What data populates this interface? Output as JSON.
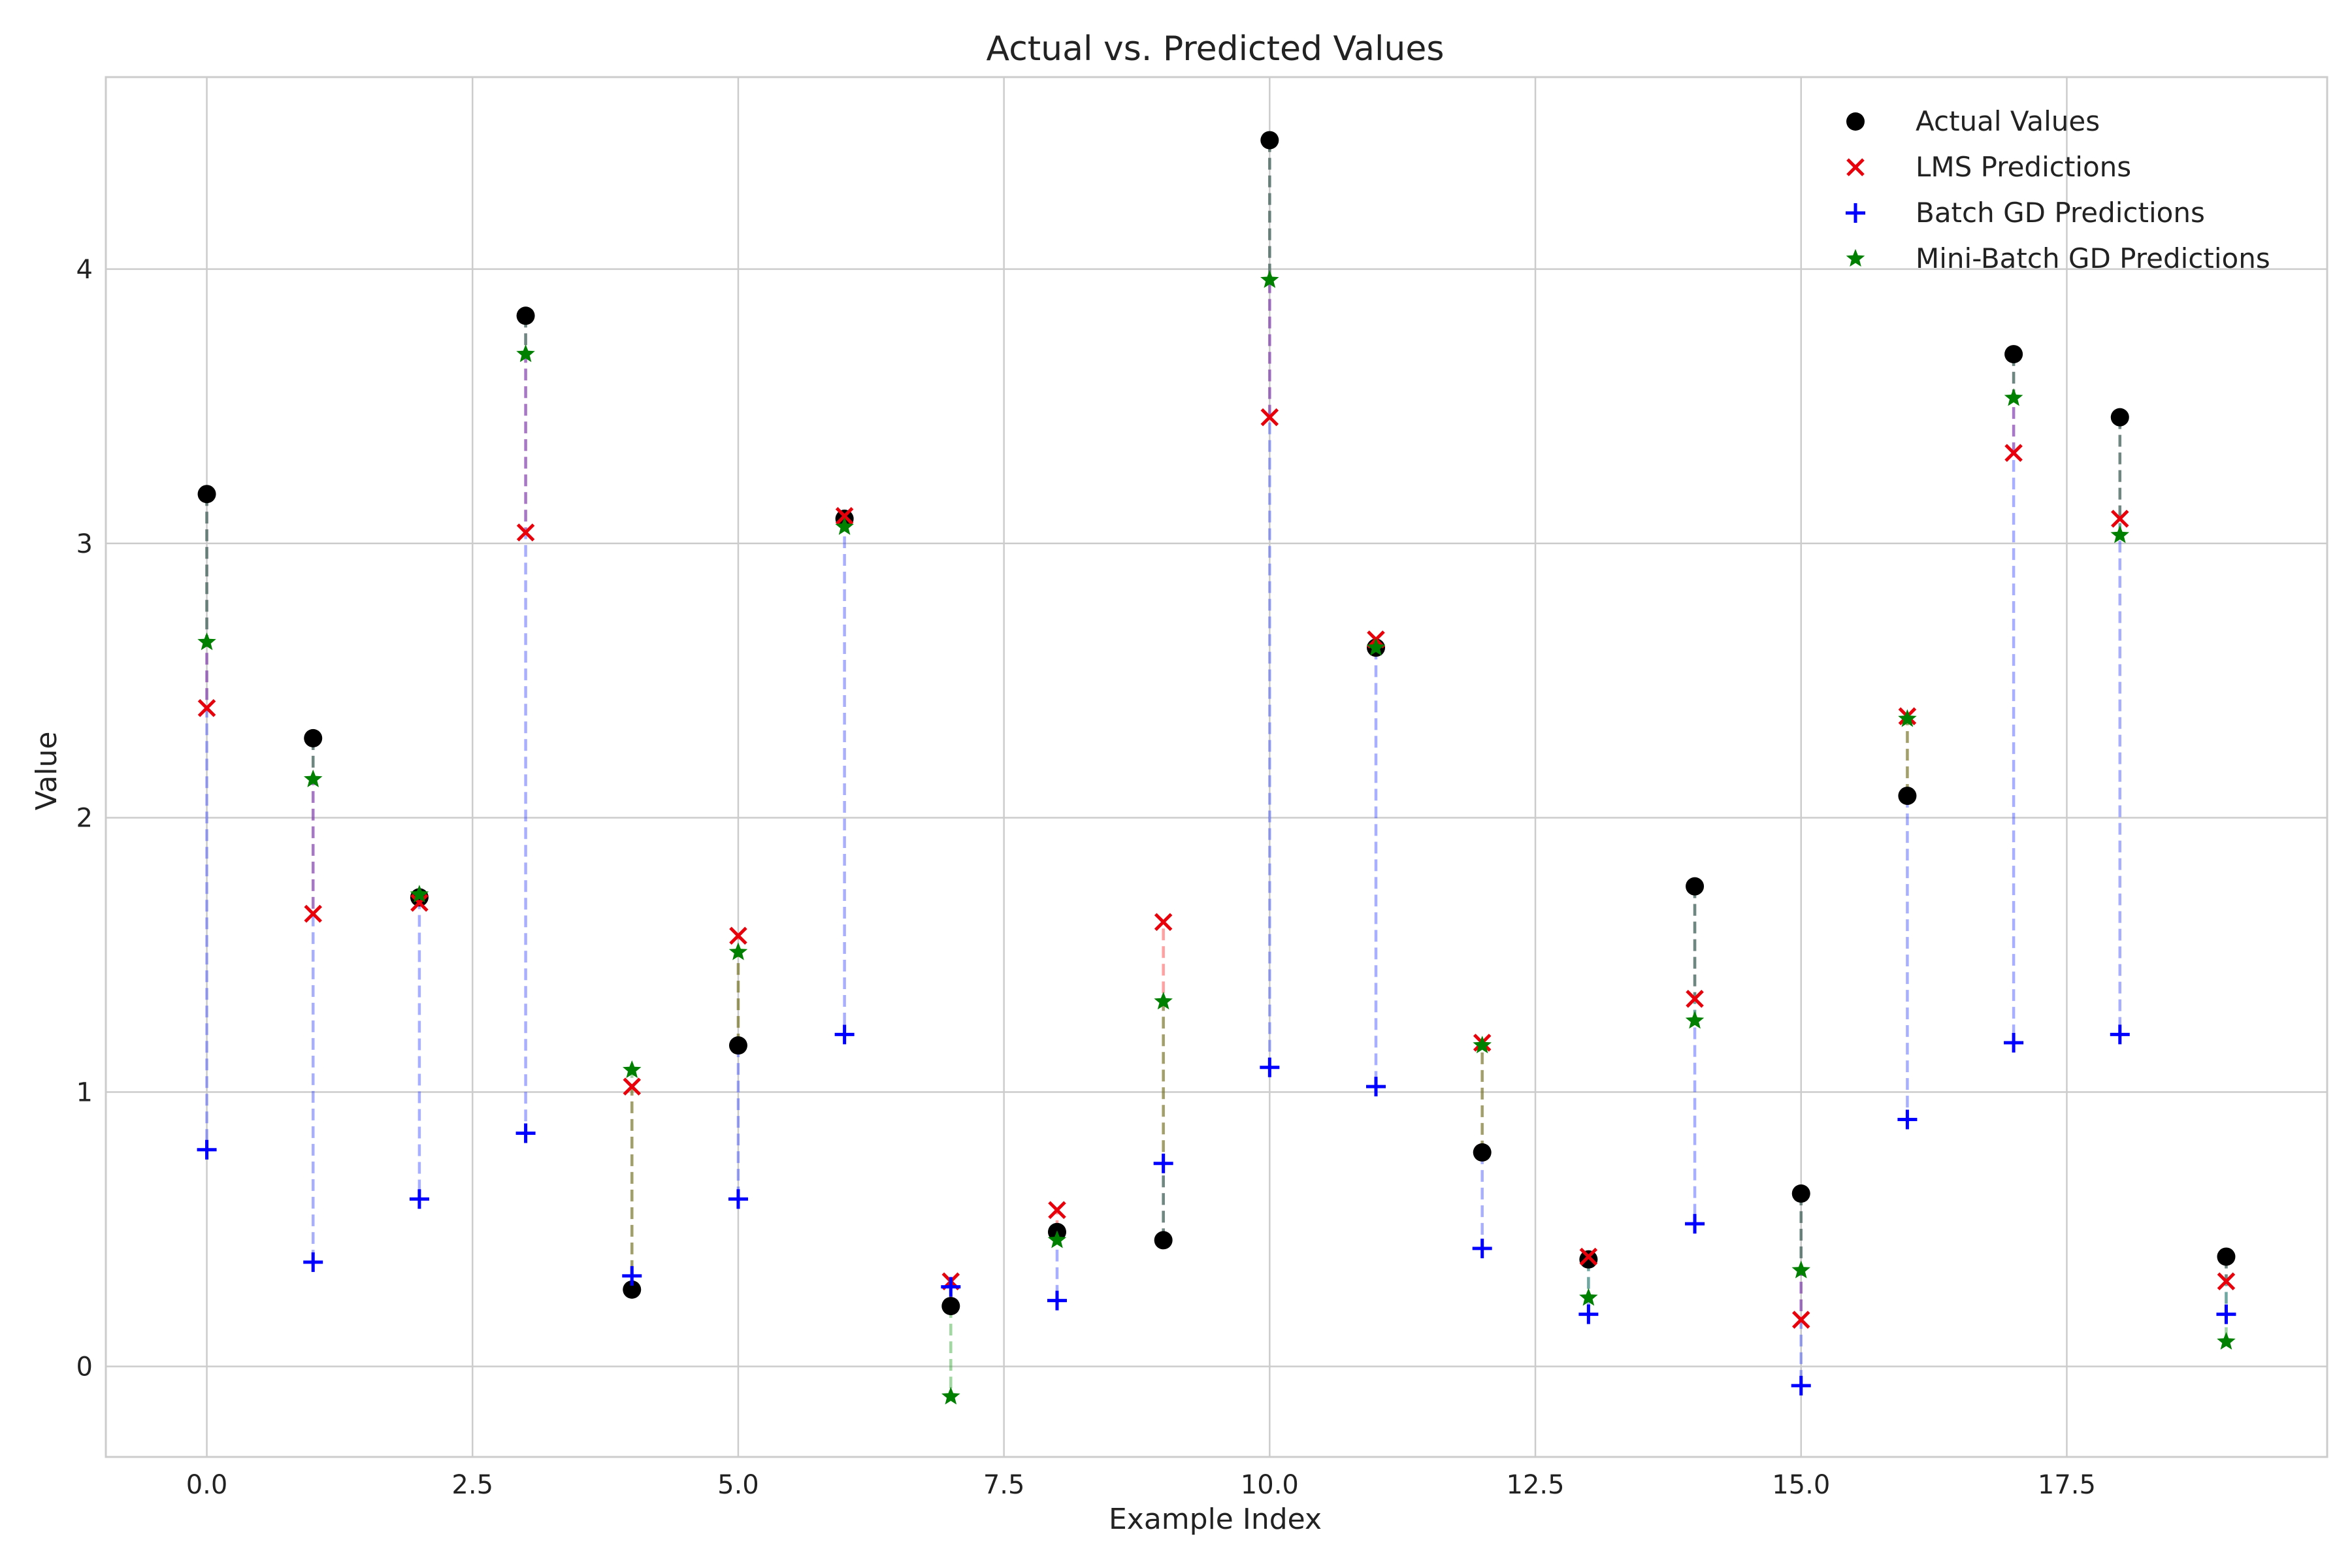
{
  "chart_data": {
    "type": "scatter",
    "title": "Actual vs. Predicted Values",
    "xlabel": "Example Index",
    "ylabel": "Value",
    "xlim": [
      -0.95,
      19.95
    ],
    "ylim": [
      -0.33,
      4.7
    ],
    "xticks": [
      0,
      2.5,
      5,
      7.5,
      10,
      12.5,
      15,
      17.5
    ],
    "xtick_labels": [
      "0.0",
      "2.5",
      "5.0",
      "7.5",
      "10.0",
      "12.5",
      "15.0",
      "17.5"
    ],
    "yticks": [
      0,
      1,
      2,
      3,
      4
    ],
    "ytick_labels": [
      "0",
      "1",
      "2",
      "3",
      "4"
    ],
    "grid": true,
    "legend_position": "top-right",
    "x": [
      0,
      1,
      2,
      3,
      4,
      5,
      6,
      7,
      8,
      9,
      10,
      11,
      12,
      13,
      14,
      15,
      16,
      17,
      18,
      19
    ],
    "series": [
      {
        "name": "Actual Values",
        "marker": "circle",
        "color": "#000000",
        "values": [
          3.18,
          2.29,
          1.71,
          3.83,
          0.28,
          1.17,
          3.09,
          0.22,
          0.49,
          0.46,
          4.47,
          2.62,
          0.78,
          0.39,
          1.75,
          0.63,
          2.08,
          3.69,
          3.46,
          0.4
        ]
      },
      {
        "name": "LMS Predictions",
        "marker": "x",
        "color": "#e8000b",
        "values": [
          2.4,
          1.65,
          1.69,
          3.04,
          1.02,
          1.57,
          3.1,
          0.31,
          0.57,
          1.62,
          3.46,
          2.65,
          1.18,
          0.4,
          1.34,
          0.17,
          2.37,
          3.33,
          3.09,
          0.31
        ]
      },
      {
        "name": "Batch GD Predictions",
        "marker": "plus",
        "color": "#0000ff",
        "values": [
          0.79,
          0.38,
          0.61,
          0.85,
          0.33,
          0.61,
          1.21,
          0.29,
          0.24,
          0.74,
          1.09,
          1.02,
          0.43,
          0.19,
          0.52,
          -0.07,
          0.9,
          1.18,
          1.21,
          0.19
        ]
      },
      {
        "name": "Mini-Batch GD Predictions",
        "marker": "star",
        "color": "#008000",
        "values": [
          2.64,
          2.14,
          1.72,
          3.69,
          1.08,
          1.51,
          3.06,
          -0.11,
          0.46,
          1.33,
          3.96,
          2.62,
          1.17,
          0.25,
          1.26,
          0.35,
          2.36,
          3.53,
          3.03,
          0.09
        ]
      }
    ]
  }
}
